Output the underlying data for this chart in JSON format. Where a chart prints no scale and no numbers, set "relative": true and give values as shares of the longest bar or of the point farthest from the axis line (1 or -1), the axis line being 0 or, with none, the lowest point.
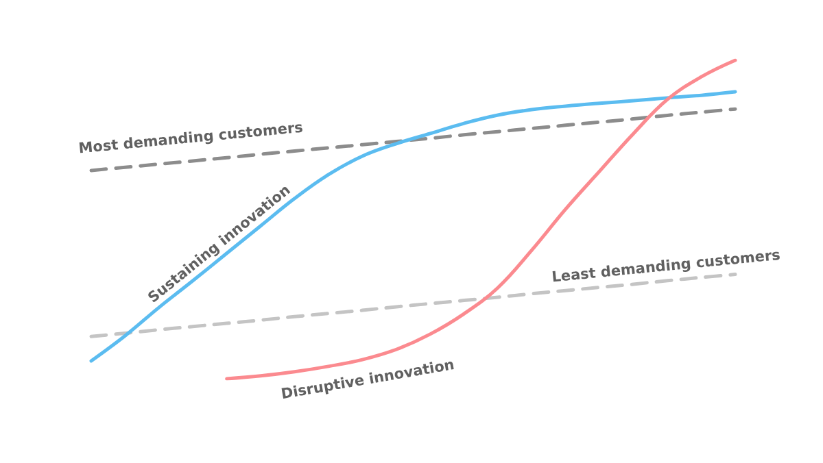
{
  "chart_data": {
    "type": "line",
    "relative": true,
    "categories": [
      null,
      null,
      null,
      null,
      null,
      null,
      null,
      null,
      null,
      null,
      null,
      null,
      null,
      null,
      null,
      null,
      null,
      null,
      null,
      null
    ],
    "series": [
      {
        "name": "Most demanding customers",
        "color": "#8c8c8c",
        "line_style": "dashed",
        "values": [
          0.654,
          0.664,
          0.674,
          0.684,
          0.694,
          0.705,
          0.715,
          0.725,
          0.735,
          0.745,
          0.755,
          0.766,
          0.776,
          0.786,
          0.796,
          0.806,
          0.816,
          0.827,
          0.837,
          0.847
        ]
      },
      {
        "name": "Least demanding customers",
        "color": "#c4c4c4",
        "line_style": "dashed",
        "values": [
          0.133,
          0.143,
          0.154,
          0.164,
          0.174,
          0.184,
          0.195,
          0.205,
          0.215,
          0.226,
          0.236,
          0.246,
          0.256,
          0.267,
          0.277,
          0.287,
          0.297,
          0.308,
          0.318,
          0.328
        ]
      },
      {
        "name": "Sustaining innovation",
        "color": "#5bbcf0",
        "line_style": "solid",
        "values": [
          0.056,
          0.135,
          0.224,
          0.308,
          0.394,
          0.48,
          0.566,
          0.641,
          0.699,
          0.738,
          0.77,
          0.802,
          0.828,
          0.845,
          0.856,
          0.865,
          0.873,
          0.882,
          0.89,
          0.901
        ]
      },
      {
        "name": "Disruptive innovation",
        "color": "#fb8a8f",
        "line_style": "solid",
        "values": [
          null,
          null,
          null,
          null,
          0,
          0.009,
          0.022,
          0.039,
          0.06,
          0.092,
          0.14,
          0.204,
          0.286,
          0.404,
          0.533,
          0.652,
          0.77,
          0.877,
          0.948,
          1
        ]
      }
    ],
    "legend": false,
    "marker": "none"
  }
}
